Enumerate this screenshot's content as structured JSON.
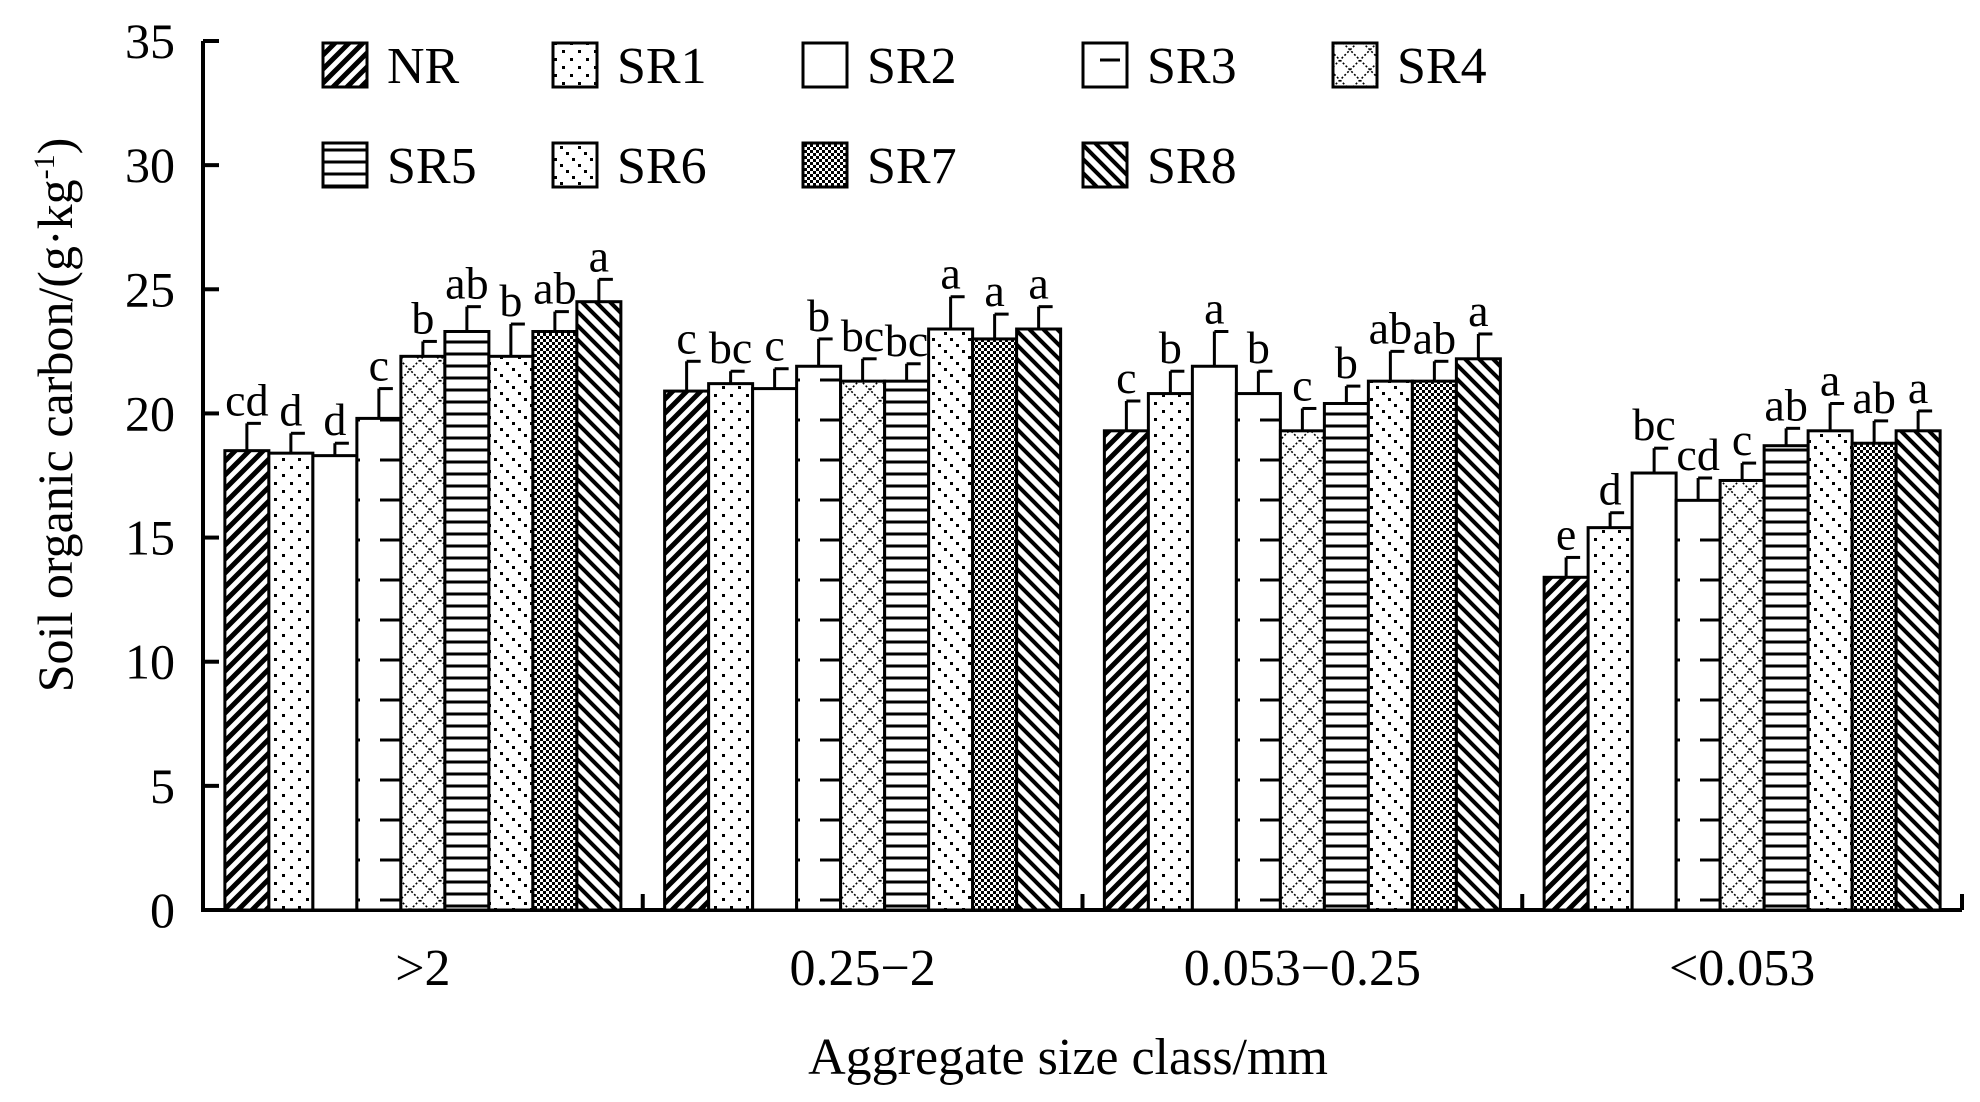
{
  "chart_data": {
    "type": "bar",
    "title": "",
    "xlabel": "Aggregate size class/mm",
    "ylabel": "Soil organic carbon/(g·kg",
    "ylabel_sup": "-1",
    "ylabel_close": ")",
    "ylim": [
      0,
      35
    ],
    "yticks": [
      0,
      5,
      10,
      15,
      20,
      25,
      30,
      35
    ],
    "grid": false,
    "legend": "top",
    "categories": [
      ">2",
      "0.25−2",
      "0.053−0.25",
      "<0.053"
    ],
    "series": [
      {
        "name": "NR",
        "pattern": "diag-fwd-thick",
        "values": [
          18.5,
          20.9,
          19.3,
          13.4
        ],
        "errors": [
          1.1,
          1.2,
          1.2,
          0.8
        ],
        "letters": [
          "cd",
          "c",
          "c",
          "e"
        ]
      },
      {
        "name": "SR1",
        "pattern": "dots-sparse",
        "values": [
          18.4,
          21.2,
          20.8,
          15.4
        ],
        "errors": [
          0.8,
          0.5,
          0.9,
          0.6
        ],
        "letters": [
          "d",
          "bc",
          "b",
          "d"
        ]
      },
      {
        "name": "SR2",
        "pattern": "blank",
        "values": [
          18.3,
          21.0,
          21.9,
          17.6
        ],
        "errors": [
          0.5,
          0.8,
          1.4,
          1.0
        ],
        "letters": [
          "d",
          "c",
          "a",
          "bc"
        ]
      },
      {
        "name": "SR3",
        "pattern": "half-dash",
        "values": [
          19.8,
          21.9,
          20.8,
          16.5
        ],
        "errors": [
          1.2,
          1.1,
          0.9,
          0.9
        ],
        "letters": [
          "c",
          "b",
          "b",
          "cd"
        ]
      },
      {
        "name": "SR4",
        "pattern": "diamond",
        "values": [
          22.3,
          21.3,
          19.3,
          17.3
        ],
        "errors": [
          0.6,
          0.9,
          0.9,
          0.7
        ],
        "letters": [
          "b",
          "bc",
          "c",
          "c"
        ]
      },
      {
        "name": "SR5",
        "pattern": "horizontal",
        "values": [
          23.3,
          21.3,
          20.4,
          18.7
        ],
        "errors": [
          1.0,
          0.7,
          0.7,
          0.7
        ],
        "letters": [
          "ab",
          "bc",
          "b",
          "ab"
        ]
      },
      {
        "name": "SR6",
        "pattern": "dots-diag",
        "values": [
          22.3,
          23.4,
          21.3,
          19.3
        ],
        "errors": [
          1.3,
          1.3,
          1.2,
          1.1
        ],
        "letters": [
          "b",
          "a",
          "ab",
          "a"
        ]
      },
      {
        "name": "SR7",
        "pattern": "checker",
        "values": [
          23.3,
          23.0,
          21.3,
          18.8
        ],
        "errors": [
          0.8,
          1.0,
          0.8,
          0.9
        ],
        "letters": [
          "ab",
          "a",
          "ab",
          "ab"
        ]
      },
      {
        "name": "SR8",
        "pattern": "diag-back",
        "values": [
          24.5,
          23.4,
          22.2,
          19.3
        ],
        "errors": [
          0.9,
          0.9,
          1.0,
          0.8
        ],
        "letters": [
          "a",
          "a",
          "a",
          "a"
        ]
      }
    ]
  }
}
